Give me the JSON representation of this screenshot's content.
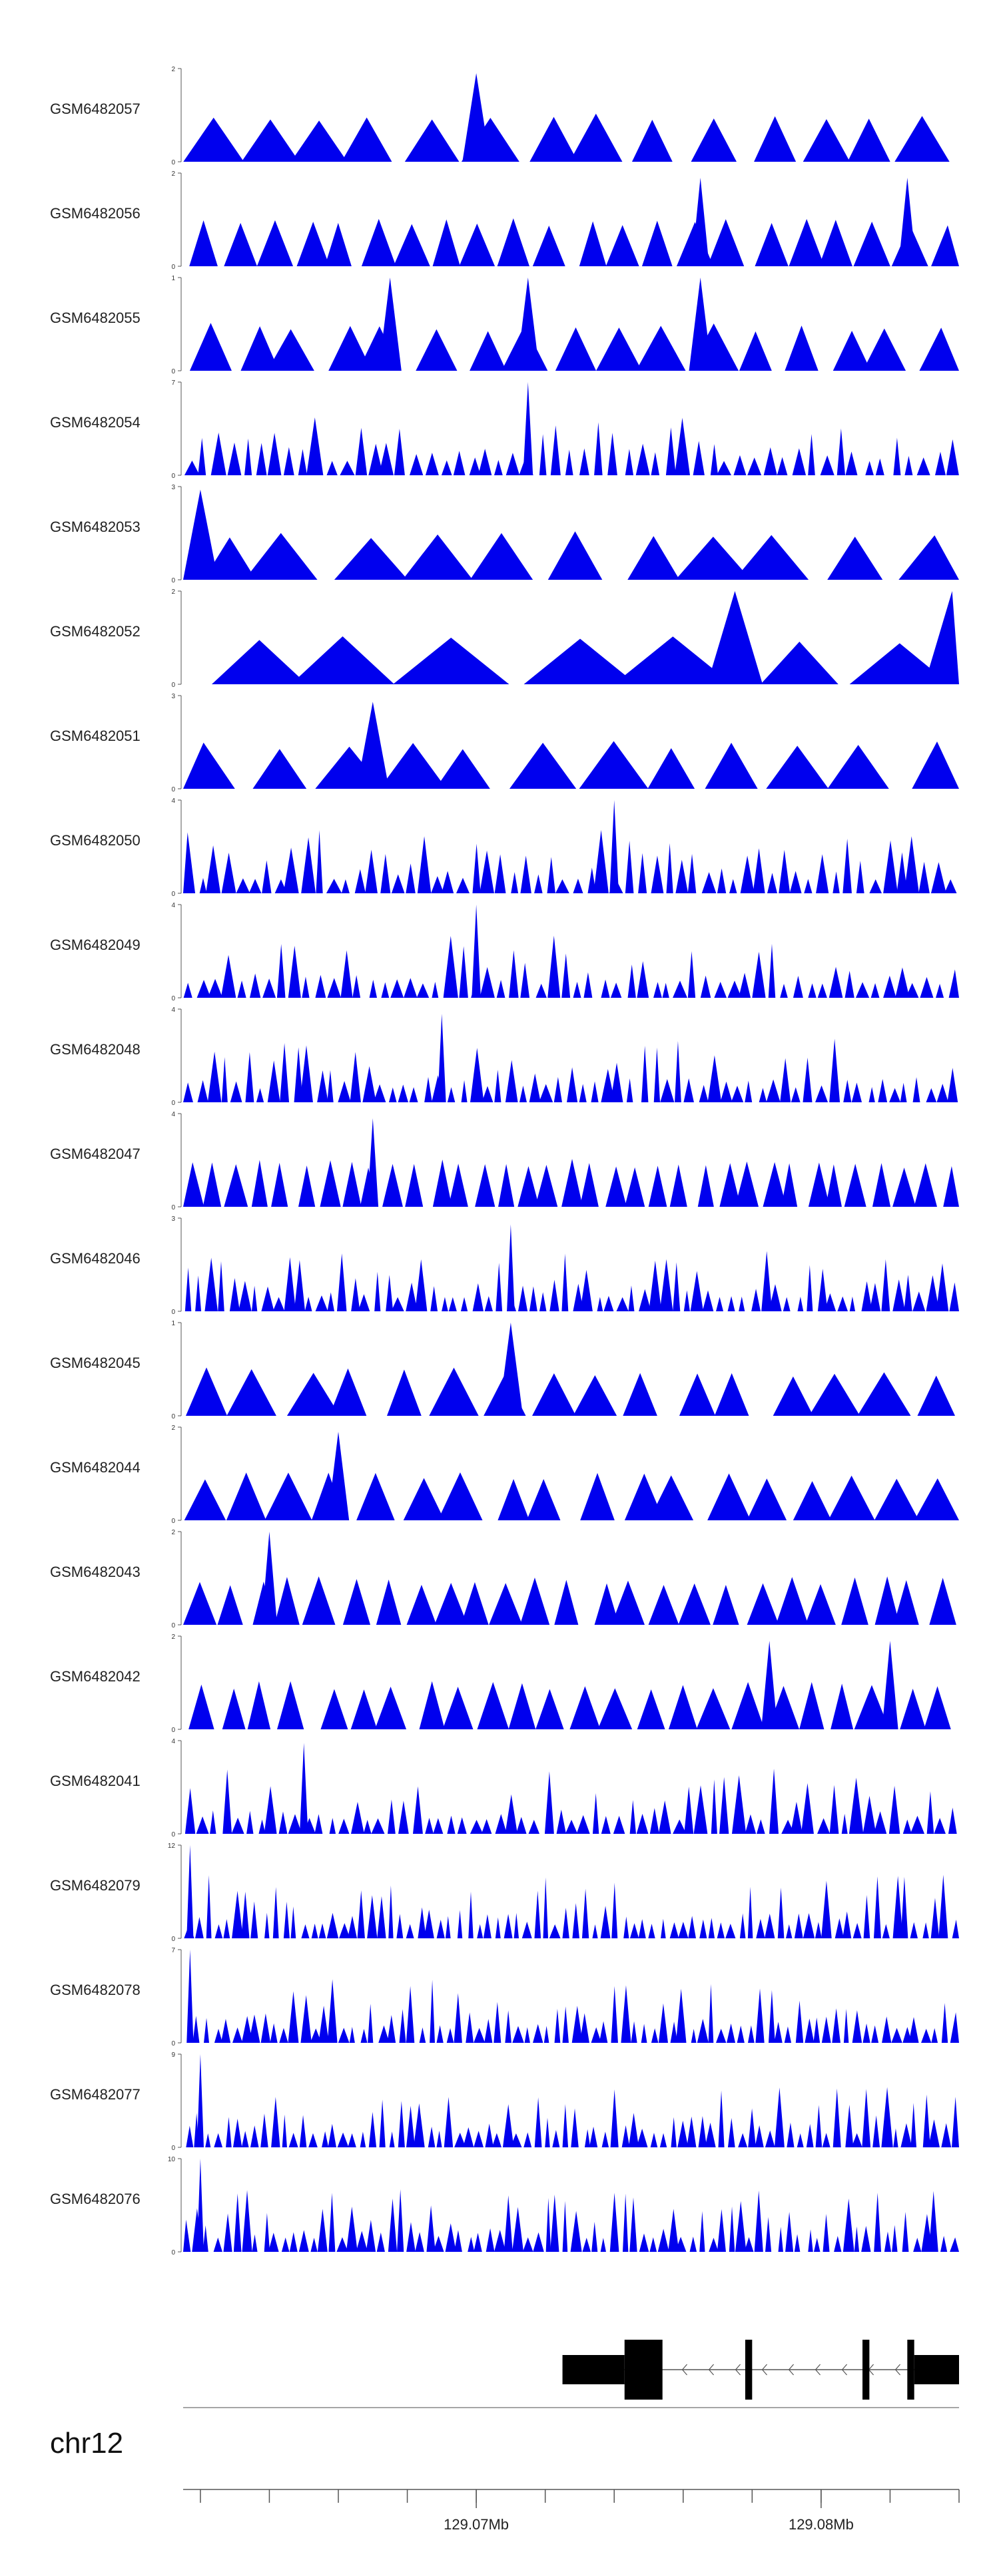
{
  "chart_data": {
    "type": "area",
    "title": "",
    "x_range_mb": [
      129.0615,
      129.084
    ],
    "tracks": [
      {
        "name": "GSM6482057",
        "ymax": 2,
        "ymin": 0,
        "peak_count": 14,
        "peaks_mb": [
          {
            "x": 129.07,
            "h": 1.9
          }
        ]
      },
      {
        "name": "GSM6482056",
        "ymax": 2,
        "ymin": 0,
        "peak_count": 22,
        "peaks_mb": [
          {
            "x": 129.0765,
            "h": 1.9
          },
          {
            "x": 129.0825,
            "h": 1.9
          }
        ]
      },
      {
        "name": "GSM6482055",
        "ymax": 1,
        "ymin": 0,
        "peak_count": 17,
        "peaks_mb": [
          {
            "x": 129.0675,
            "h": 1.0
          },
          {
            "x": 129.0715,
            "h": 1.0
          },
          {
            "x": 129.0765,
            "h": 1.0
          }
        ]
      },
      {
        "name": "GSM6482054",
        "ymax": 7,
        "ymin": 0,
        "peak_count": 55,
        "peaks_mb": [
          {
            "x": 129.0715,
            "h": 7.0
          }
        ]
      },
      {
        "name": "GSM6482053",
        "ymax": 3,
        "ymin": 0,
        "peak_count": 11,
        "peaks_mb": [
          {
            "x": 129.062,
            "h": 2.9
          }
        ]
      },
      {
        "name": "GSM6482052",
        "ymax": 2,
        "ymin": 0,
        "peak_count": 7,
        "peaks_mb": [
          {
            "x": 129.0775,
            "h": 2.0
          },
          {
            "x": 129.0838,
            "h": 2.0
          }
        ]
      },
      {
        "name": "GSM6482051",
        "ymax": 3,
        "ymin": 0,
        "peak_count": 12,
        "peaks_mb": [
          {
            "x": 129.067,
            "h": 2.8
          }
        ]
      },
      {
        "name": "GSM6482050",
        "ymax": 4,
        "ymin": 0,
        "peak_count": 60,
        "peaks_mb": [
          {
            "x": 129.074,
            "h": 4.0
          }
        ]
      },
      {
        "name": "GSM6482049",
        "ymax": 4,
        "ymin": 0,
        "peak_count": 60,
        "peaks_mb": [
          {
            "x": 129.07,
            "h": 4.0
          }
        ]
      },
      {
        "name": "GSM6482048",
        "ymax": 4,
        "ymin": 0,
        "peak_count": 65,
        "peaks_mb": [
          {
            "x": 129.069,
            "h": 3.8
          }
        ]
      },
      {
        "name": "GSM6482047",
        "ymax": 4,
        "ymin": 0,
        "peak_count": 35,
        "peaks_mb": [
          {
            "x": 129.067,
            "h": 3.8
          }
        ]
      },
      {
        "name": "GSM6482046",
        "ymax": 3,
        "ymin": 0,
        "peak_count": 70,
        "peaks_mb": [
          {
            "x": 129.071,
            "h": 2.8
          }
        ]
      },
      {
        "name": "GSM6482045",
        "ymax": 1,
        "ymin": 0,
        "peak_count": 16,
        "peaks_mb": [
          {
            "x": 129.071,
            "h": 1.0
          }
        ]
      },
      {
        "name": "GSM6482044",
        "ymax": 2,
        "ymin": 0,
        "peak_count": 18,
        "peaks_mb": [
          {
            "x": 129.066,
            "h": 1.9
          }
        ]
      },
      {
        "name": "GSM6482043",
        "ymax": 2,
        "ymin": 0,
        "peak_count": 25,
        "peaks_mb": [
          {
            "x": 129.064,
            "h": 2.0
          }
        ]
      },
      {
        "name": "GSM6482042",
        "ymax": 2,
        "ymin": 0,
        "peak_count": 24,
        "peaks_mb": [
          {
            "x": 129.0785,
            "h": 1.9
          },
          {
            "x": 129.082,
            "h": 1.9
          }
        ]
      },
      {
        "name": "GSM6482041",
        "ymax": 4,
        "ymin": 0,
        "peak_count": 65,
        "peaks_mb": [
          {
            "x": 129.065,
            "h": 3.9
          }
        ]
      },
      {
        "name": "GSM6482079",
        "ymax": 12,
        "ymin": 0,
        "peak_count": 80,
        "peaks_mb": [
          {
            "x": 129.0617,
            "h": 12.0
          }
        ]
      },
      {
        "name": "GSM6482078",
        "ymax": 7,
        "ymin": 0,
        "peak_count": 80,
        "peaks_mb": [
          {
            "x": 129.0617,
            "h": 7.0
          }
        ]
      },
      {
        "name": "GSM6482077",
        "ymax": 9,
        "ymin": 0,
        "peak_count": 80,
        "peaks_mb": [
          {
            "x": 129.062,
            "h": 9.0
          }
        ]
      },
      {
        "name": "GSM6482076",
        "ymax": 10,
        "ymin": 0,
        "peak_count": 80,
        "peaks_mb": [
          {
            "x": 129.062,
            "h": 10.0
          }
        ]
      }
    ],
    "gene_track": {
      "strand": "-",
      "exons_mb": [
        [
          129.0725,
          129.0743
        ],
        [
          129.0743,
          129.0754
        ],
        [
          129.0778,
          129.078
        ],
        [
          129.0812,
          129.0814
        ],
        [
          129.0825,
          129.0827
        ],
        [
          129.0827,
          129.084
        ]
      ]
    },
    "axis": {
      "chromosome": "chr12",
      "tick_labels": [
        "129.07Mb",
        "129.08Mb"
      ],
      "tick_values_mb": [
        129.07,
        129.08
      ],
      "minor_tick_step_mb": 0.002
    }
  },
  "colors": {
    "signal": "#0000ee",
    "axis": "#555555",
    "gene": "#000000"
  }
}
